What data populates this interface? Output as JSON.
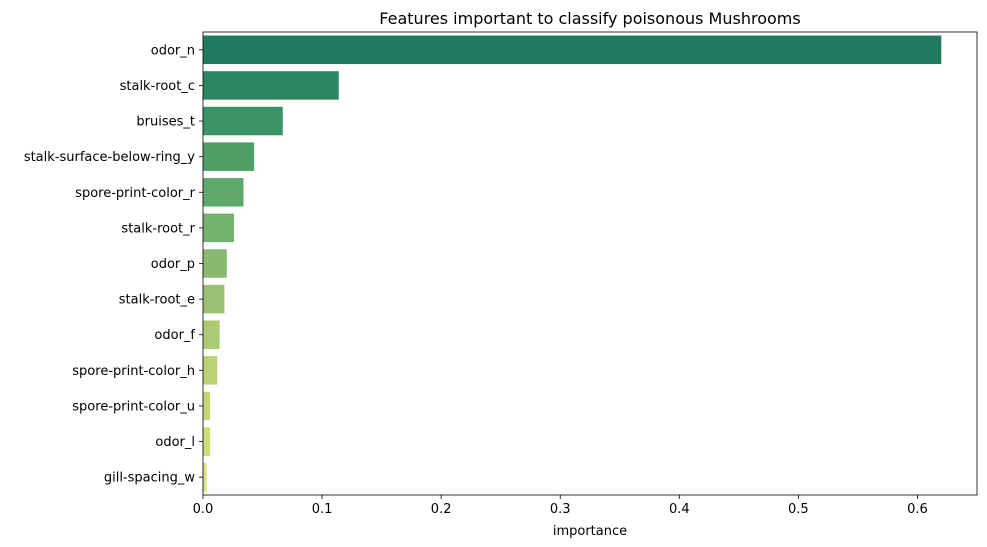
{
  "chart_data": {
    "type": "bar",
    "orientation": "horizontal",
    "title": "Features important to classify poisonous Mushrooms",
    "xlabel": "importance",
    "ylabel": "",
    "xlim": [
      0,
      0.65
    ],
    "xticks": [
      "0.0",
      "0.1",
      "0.2",
      "0.3",
      "0.4",
      "0.5",
      "0.6"
    ],
    "grid": false,
    "legend": "none",
    "categories": [
      "odor_n",
      "stalk-root_c",
      "bruises_t",
      "stalk-surface-below-ring_y",
      "spore-print-color_r",
      "stalk-root_r",
      "odor_p",
      "stalk-root_e",
      "odor_f",
      "spore-print-color_h",
      "spore-print-color_u",
      "odor_l",
      "gill-spacing_w"
    ],
    "values": [
      0.62,
      0.114,
      0.067,
      0.043,
      0.034,
      0.026,
      0.02,
      0.018,
      0.014,
      0.012,
      0.006,
      0.006,
      0.003
    ],
    "colors": [
      "#21795f",
      "#2d8662",
      "#3d9364",
      "#4f9f67",
      "#61a96a",
      "#73b16d",
      "#87b970",
      "#99c173",
      "#aacb74",
      "#b8d276",
      "#c4d878",
      "#cedd7a",
      "#d9e27c"
    ]
  }
}
